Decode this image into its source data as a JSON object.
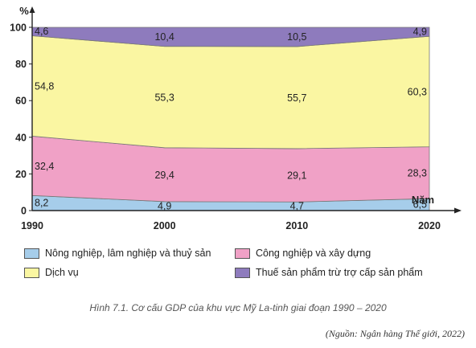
{
  "chart_data": {
    "type": "area",
    "stacked": true,
    "ylabel": "%",
    "xlabel": "Năm",
    "ylim": [
      0,
      100
    ],
    "yticks": [
      0,
      20,
      40,
      60,
      80,
      100
    ],
    "x": [
      "1990",
      "2000",
      "2010",
      "2020"
    ],
    "series": [
      {
        "name": "Nông nghiệp, lâm nghiệp và thuỷ sản",
        "color": "#a6cdea",
        "values": [
          8.2,
          4.9,
          4.7,
          6.5
        ],
        "labels": [
          "8,2",
          "4,9",
          "4,7",
          "6,5"
        ]
      },
      {
        "name": "Công nghiệp và xây dựng",
        "color": "#f0a1c6",
        "values": [
          32.4,
          29.4,
          29.1,
          28.3
        ],
        "labels": [
          "32,4",
          "29,4",
          "29,1",
          "28,3"
        ]
      },
      {
        "name": "Dịch vụ",
        "color": "#faf6a2",
        "values": [
          54.8,
          55.3,
          55.7,
          60.3
        ],
        "labels": [
          "54,8",
          "55,3",
          "55,7",
          "60,3"
        ]
      },
      {
        "name": "Thuế sản phẩm trừ trợ cấp sản phẩm",
        "color": "#8e7bbd",
        "values": [
          4.6,
          10.4,
          10.5,
          4.9
        ],
        "labels": [
          "4,6",
          "10,4",
          "10,5",
          "4,9"
        ]
      }
    ],
    "legend_position": "bottom"
  },
  "caption": "Hình 7.1. Cơ cấu GDP của khu vực Mỹ La-tinh giai đoạn 1990 – 2020",
  "source": "(Nguồn: Ngân hàng Thế giới, 2022)"
}
